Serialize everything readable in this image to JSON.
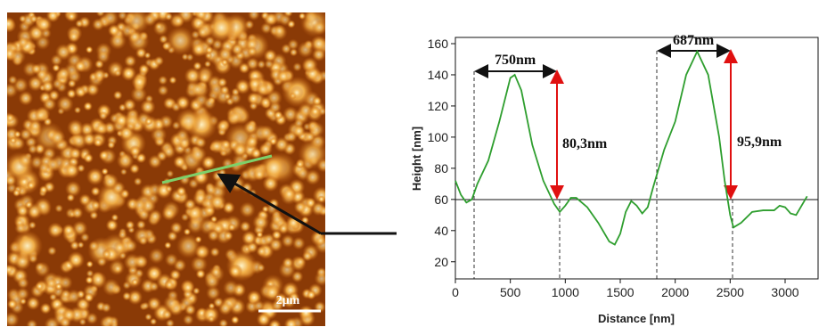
{
  "chart_data": {
    "type": "line",
    "xlabel": "Distance [nm]",
    "ylabel": "Height [nm]",
    "x": [
      0,
      50,
      100,
      150,
      200,
      300,
      400,
      500,
      540,
      600,
      700,
      800,
      900,
      950,
      1000,
      1050,
      1100,
      1200,
      1300,
      1400,
      1450,
      1500,
      1550,
      1600,
      1650,
      1700,
      1750,
      1800,
      1900,
      2000,
      2100,
      2200,
      2300,
      2400,
      2450,
      2500,
      2530,
      2600,
      2700,
      2800,
      2900,
      2950,
      3000,
      3050,
      3100,
      3150,
      3200
    ],
    "values": [
      72,
      63,
      58,
      60,
      70,
      85,
      110,
      138,
      140,
      130,
      95,
      72,
      57,
      52,
      56,
      61,
      61,
      55,
      45,
      33,
      31,
      38,
      52,
      59,
      56,
      51,
      55,
      68,
      92,
      110,
      140,
      155,
      140,
      100,
      72,
      50,
      42,
      45,
      52,
      53,
      53,
      56,
      55,
      51,
      50,
      56,
      62
    ],
    "color": "#2e9e2e",
    "xlim": [
      0,
      3300
    ],
    "xticks": [
      0,
      500,
      1000,
      1500,
      2000,
      2500,
      3000
    ],
    "ylim": [
      9,
      164
    ],
    "yticks": [
      20,
      40,
      60,
      80,
      100,
      120,
      140,
      160
    ],
    "annotations": [
      "750nm",
      "80,3nm",
      "687nm",
      "95,9nm"
    ],
    "scale_bar": "2μm"
  }
}
